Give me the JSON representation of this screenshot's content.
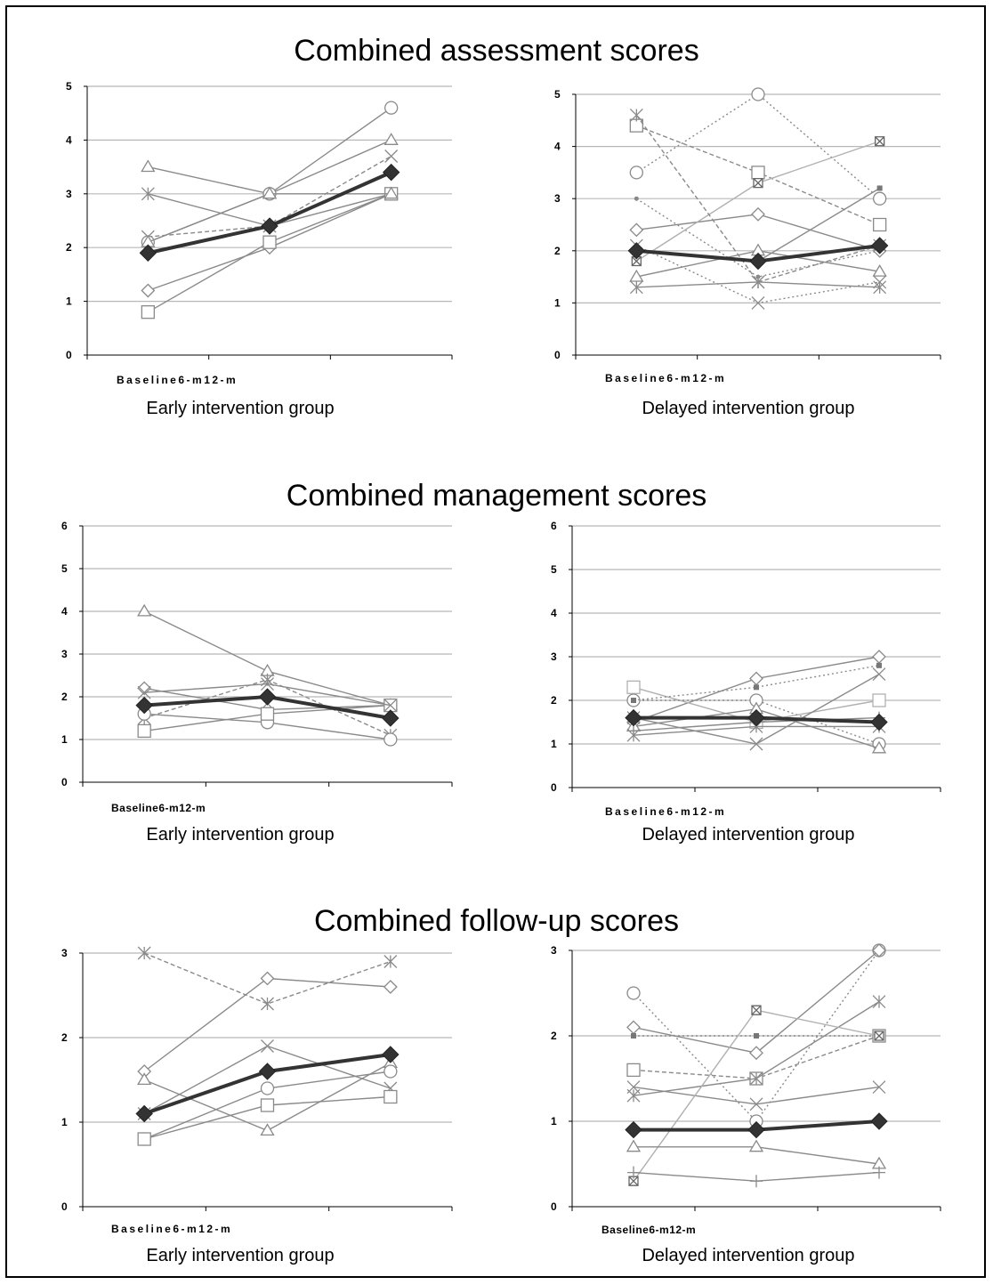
{
  "sections": [
    {
      "title": "Combined assessment scores"
    },
    {
      "title": "Combined management scores"
    },
    {
      "title": "Combined follow-up scores"
    }
  ],
  "chart_data": [
    {
      "type": "line",
      "title": "Combined assessment scores",
      "group_label": "Early intervention group",
      "category_label": "Baseline6-m12-m",
      "ylim": [
        0,
        5
      ],
      "yticks": [
        "0",
        "1",
        "2",
        "3",
        "4",
        "5"
      ],
      "grid": true,
      "series": [
        {
          "marker": "triangle",
          "style": "solid",
          "values": [
            3.5,
            3.0,
            4.0
          ]
        },
        {
          "marker": "star",
          "style": "solid",
          "values": [
            3.0,
            2.4,
            3.0
          ]
        },
        {
          "marker": "cross",
          "style": "dashed",
          "values": [
            2.2,
            2.4,
            3.7
          ]
        },
        {
          "marker": "circle",
          "style": "solid",
          "values": [
            2.1,
            3.0,
            4.6
          ]
        },
        {
          "marker": "diamond",
          "style": "solid",
          "values": [
            1.2,
            2.0,
            3.0
          ]
        },
        {
          "marker": "square",
          "style": "solid",
          "values": [
            0.8,
            2.1,
            3.0
          ]
        },
        {
          "marker": "triangle",
          "style": "solid",
          "values": [
            2.1,
            3.0,
            3.0
          ]
        },
        {
          "marker": "diamond-filled",
          "style": "mean",
          "values": [
            1.9,
            2.4,
            3.4
          ]
        }
      ]
    },
    {
      "type": "line",
      "title": "Combined assessment scores",
      "group_label": "Delayed intervention group",
      "category_label": "Baseline6-m12-m",
      "ylim": [
        0,
        5
      ],
      "yticks": [
        "0",
        "1",
        "2",
        "3",
        "4",
        "5"
      ],
      "grid": true,
      "series": [
        {
          "marker": "square",
          "style": "dashed",
          "values": [
            4.4,
            3.5,
            2.5
          ]
        },
        {
          "marker": "circle",
          "style": "dotted",
          "values": [
            3.5,
            5.0,
            3.0
          ]
        },
        {
          "marker": "small-dot",
          "style": "dotted",
          "values": [
            3.0,
            1.5,
            2.0
          ]
        },
        {
          "marker": "diamond",
          "style": "solid",
          "values": [
            2.4,
            2.7,
            2.0
          ]
        },
        {
          "marker": "boxed-x",
          "style": "light",
          "values": [
            1.8,
            3.3,
            4.1
          ]
        },
        {
          "marker": "small-square",
          "style": "solid",
          "values": [
            2.0,
            1.8,
            3.2
          ]
        },
        {
          "marker": "triangle",
          "style": "solid",
          "values": [
            1.5,
            2.0,
            1.6
          ]
        },
        {
          "marker": "star",
          "style": "solid",
          "values": [
            1.3,
            1.4,
            1.3
          ]
        },
        {
          "marker": "cross",
          "style": "dotted",
          "values": [
            2.1,
            1.0,
            1.4
          ]
        },
        {
          "marker": "asterisk",
          "style": "dashed",
          "values": [
            4.6,
            1.4,
            2.1
          ]
        },
        {
          "marker": "diamond-filled",
          "style": "mean",
          "values": [
            2.0,
            1.8,
            2.1
          ]
        }
      ]
    },
    {
      "type": "line",
      "title": "Combined management scores",
      "group_label": "Early intervention group",
      "category_label": "Baseline6-m12-m",
      "ylim": [
        0,
        6
      ],
      "yticks": [
        "0",
        "1",
        "2",
        "3",
        "4",
        "5",
        "6"
      ],
      "grid": true,
      "series": [
        {
          "marker": "triangle",
          "style": "solid",
          "values": [
            4.0,
            2.6,
            1.8
          ]
        },
        {
          "marker": "diamond",
          "style": "solid",
          "values": [
            2.2,
            1.7,
            1.8
          ]
        },
        {
          "marker": "star",
          "style": "dashed",
          "values": [
            1.5,
            2.4,
            1.1
          ]
        },
        {
          "marker": "circle",
          "style": "solid",
          "values": [
            1.6,
            1.4,
            1.0
          ]
        },
        {
          "marker": "square",
          "style": "solid",
          "values": [
            1.2,
            1.6,
            1.8
          ]
        },
        {
          "marker": "cross",
          "style": "solid",
          "values": [
            2.1,
            2.3,
            1.8
          ]
        },
        {
          "marker": "diamond-filled",
          "style": "mean",
          "values": [
            1.8,
            2.0,
            1.5
          ]
        }
      ]
    },
    {
      "type": "line",
      "title": "Combined management scores",
      "group_label": "Delayed intervention group",
      "category_label": "Baseline6-m12-m",
      "ylim": [
        0,
        6
      ],
      "yticks": [
        "0",
        "1",
        "2",
        "3",
        "4",
        "5",
        "6"
      ],
      "grid": true,
      "series": [
        {
          "marker": "diamond",
          "style": "solid",
          "values": [
            1.5,
            2.5,
            3.0
          ]
        },
        {
          "marker": "square",
          "style": "light",
          "values": [
            2.3,
            1.5,
            2.0
          ]
        },
        {
          "marker": "circle",
          "style": "dotted",
          "values": [
            2.0,
            2.0,
            1.0
          ]
        },
        {
          "marker": "small-square",
          "style": "dotted",
          "values": [
            2.0,
            2.3,
            2.8
          ]
        },
        {
          "marker": "triangle",
          "style": "solid",
          "values": [
            1.4,
            1.8,
            0.9
          ]
        },
        {
          "marker": "cross",
          "style": "solid",
          "values": [
            1.6,
            1.0,
            2.6
          ]
        },
        {
          "marker": "star",
          "style": "solid",
          "values": [
            1.2,
            1.4,
            1.4
          ]
        },
        {
          "marker": "plus",
          "style": "solid",
          "values": [
            1.3,
            1.5,
            1.6
          ]
        },
        {
          "marker": "diamond-filled",
          "style": "mean",
          "values": [
            1.6,
            1.6,
            1.5
          ]
        }
      ]
    },
    {
      "type": "line",
      "title": "Combined follow-up scores",
      "group_label": "Early intervention group",
      "category_label": "Baseline6-m12-m",
      "ylim": [
        0,
        3
      ],
      "yticks": [
        "0",
        "1",
        "2",
        "3"
      ],
      "grid": true,
      "series": [
        {
          "marker": "star",
          "style": "dashed",
          "values": [
            3.0,
            2.4,
            2.9
          ]
        },
        {
          "marker": "diamond",
          "style": "solid",
          "values": [
            1.6,
            2.7,
            2.6
          ]
        },
        {
          "marker": "cross",
          "style": "solid",
          "values": [
            1.1,
            1.9,
            1.4
          ]
        },
        {
          "marker": "triangle",
          "style": "solid",
          "values": [
            1.5,
            0.9,
            1.7
          ]
        },
        {
          "marker": "circle",
          "style": "solid",
          "values": [
            0.8,
            1.4,
            1.6
          ]
        },
        {
          "marker": "square",
          "style": "solid",
          "values": [
            0.8,
            1.2,
            1.3
          ]
        },
        {
          "marker": "diamond-filled",
          "style": "mean",
          "values": [
            1.1,
            1.6,
            1.8
          ]
        }
      ]
    },
    {
      "type": "line",
      "title": "Combined follow-up scores",
      "group_label": "Delayed intervention group",
      "category_label": "Baseline6-m12-m",
      "ylim": [
        0,
        3
      ],
      "yticks": [
        "0",
        "1",
        "2",
        "3"
      ],
      "grid": true,
      "series": [
        {
          "marker": "circle",
          "style": "dotted",
          "values": [
            2.5,
            1.0,
            3.0
          ]
        },
        {
          "marker": "diamond",
          "style": "solid",
          "values": [
            2.1,
            1.8,
            3.0
          ]
        },
        {
          "marker": "small-square",
          "style": "dotted",
          "values": [
            2.0,
            2.0,
            2.0
          ]
        },
        {
          "marker": "square",
          "style": "dashed",
          "values": [
            1.6,
            1.5,
            2.0
          ]
        },
        {
          "marker": "cross",
          "style": "solid",
          "values": [
            1.4,
            1.2,
            1.4
          ]
        },
        {
          "marker": "star",
          "style": "solid",
          "values": [
            1.3,
            1.5,
            2.4
          ]
        },
        {
          "marker": "boxed-x",
          "style": "light",
          "values": [
            0.3,
            2.3,
            2.0
          ]
        },
        {
          "marker": "triangle",
          "style": "solid",
          "values": [
            0.7,
            0.7,
            0.5
          ]
        },
        {
          "marker": "plus",
          "style": "solid",
          "values": [
            0.4,
            0.3,
            0.4
          ]
        },
        {
          "marker": "diamond-filled",
          "style": "mean",
          "values": [
            0.9,
            0.9,
            1.0
          ]
        }
      ]
    }
  ]
}
